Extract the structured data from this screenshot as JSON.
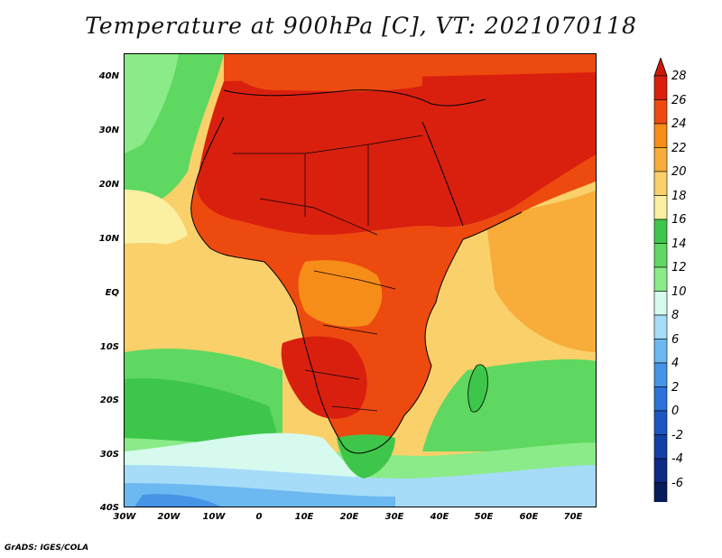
{
  "title": "Temperature at 900hPa [C], VT: 2021070118",
  "footer": "GrADS: IGES/COLA",
  "lat_labels": [
    "40N",
    "30N",
    "20N",
    "10N",
    "EQ",
    "10S",
    "20S",
    "30S",
    "40S"
  ],
  "lon_labels": [
    "30W",
    "20W",
    "10W",
    "0",
    "10E",
    "20E",
    "30E",
    "40E",
    "50E",
    "60E",
    "70E"
  ],
  "colorbar": {
    "labels": [
      "28",
      "26",
      "24",
      "22",
      "20",
      "18",
      "16",
      "14",
      "12",
      "10",
      "8",
      "6",
      "4",
      "2",
      "0",
      "-2",
      "-4",
      "-6"
    ],
    "colors": [
      "#d9200e",
      "#ed4a10",
      "#f68d18",
      "#f8ad3a",
      "#fad06a",
      "#fbf0a2",
      "#3ec64a",
      "#5ed860",
      "#8aeb88",
      "#d6faee",
      "#a6dcf8",
      "#6cb8f0",
      "#4694e6",
      "#2c72d8",
      "#1c56c2",
      "#1240a8",
      "#0c2a86",
      "#081c5c"
    ],
    "top_color": "#c81a06",
    "bottom_color": "#e4e4fa"
  }
}
